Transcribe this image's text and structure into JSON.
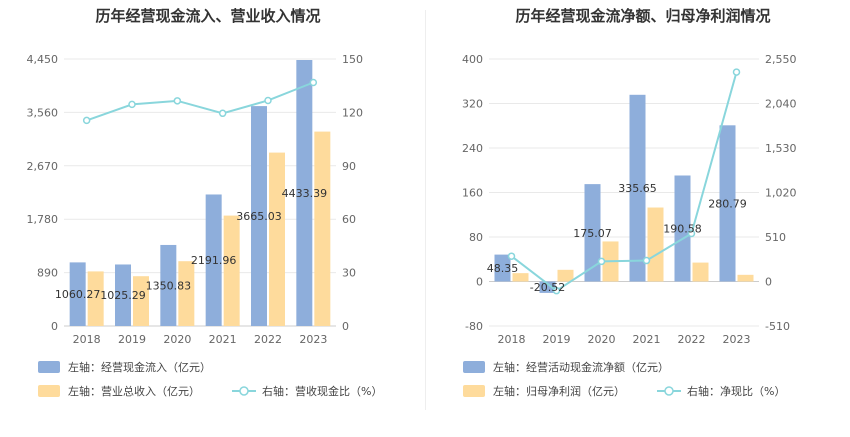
{
  "colors": {
    "bar_primary": "#8eaedb",
    "bar_secondary": "#fedb9c",
    "line": "#89d6dc",
    "grid": "#e9e9e9",
    "axis": "#cccccc"
  },
  "chart_data": [
    {
      "type": "bar",
      "title": "历年经营现金流入、营业收入情况",
      "categories": [
        "2018",
        "2019",
        "2020",
        "2021",
        "2022",
        "2023"
      ],
      "left_axis": {
        "ticks": [
          "0",
          "890",
          "1,780",
          "2,670",
          "3,560",
          "4,450"
        ],
        "ylim": [
          0,
          4450
        ]
      },
      "right_axis": {
        "ticks": [
          "0",
          "30",
          "60",
          "90",
          "120",
          "150"
        ],
        "ylim": [
          0,
          150
        ]
      },
      "series": [
        {
          "name": "左轴：经营现金流入（亿元）",
          "axis": "left",
          "kind": "bar",
          "values": [
            1060.27,
            1025.29,
            1350.83,
            2191.96,
            3665.03,
            4433.39
          ],
          "labels": [
            "1060.27",
            "1025.29",
            "1350.83",
            "2191.96",
            "3665.03",
            "4433.39"
          ]
        },
        {
          "name": "左轴：营业总收入（亿元）",
          "axis": "left",
          "kind": "bar",
          "values": [
            910,
            830,
            1080,
            1840,
            2890,
            3240
          ]
        },
        {
          "name": "右轴：营收现金比（%）",
          "axis": "right",
          "kind": "line",
          "values": [
            115.5,
            124.5,
            126.5,
            119.5,
            126.7,
            136.8
          ]
        }
      ]
    },
    {
      "type": "bar",
      "title": "历年经营现金流净额、归母净利润情况",
      "categories": [
        "2018",
        "2019",
        "2020",
        "2021",
        "2022",
        "2023"
      ],
      "left_axis": {
        "ticks": [
          "-80",
          "0",
          "80",
          "160",
          "240",
          "320",
          "400"
        ],
        "ylim": [
          -80,
          400
        ]
      },
      "right_axis": {
        "ticks": [
          "-510",
          "0",
          "510",
          "1,020",
          "1,530",
          "2,040",
          "2,550"
        ],
        "ylim": [
          -510,
          2550
        ]
      },
      "series": [
        {
          "name": "左轴：经营活动现金流净额（亿元）",
          "axis": "left",
          "kind": "bar",
          "values": [
            48.35,
            -20.52,
            175.07,
            335.65,
            190.58,
            280.79
          ],
          "labels": [
            "48.35",
            "-20.52",
            "175.07",
            "335.65",
            "190.58",
            "280.79"
          ]
        },
        {
          "name": "左轴：归母净利润（亿元）",
          "axis": "left",
          "kind": "bar",
          "values": [
            15,
            21,
            72,
            133,
            34,
            12
          ]
        },
        {
          "name": "右轴：净现比（%）",
          "axis": "right",
          "kind": "line",
          "values": [
            290,
            -105,
            230,
            240,
            550,
            2400
          ]
        }
      ]
    }
  ]
}
